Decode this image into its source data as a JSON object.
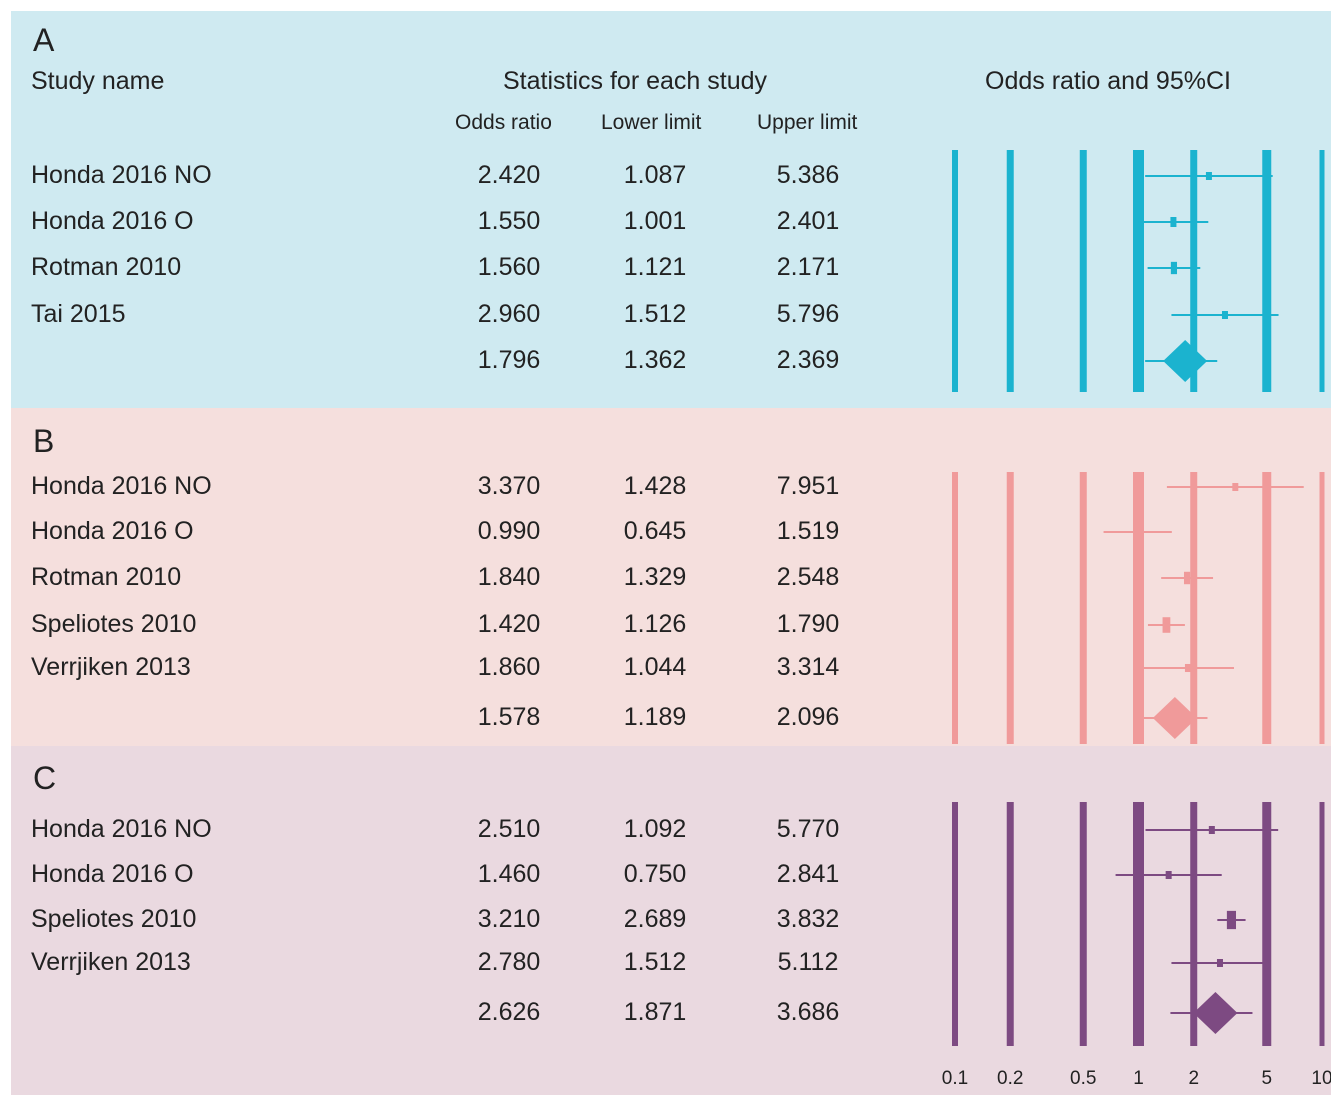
{
  "header": {
    "study_name": "Study name",
    "statistics": "Statistics for each study",
    "odds_ratio": "Odds ratio",
    "lower_limit": "Lower limit",
    "upper_limit": "Upper limit",
    "plot_title": "Odds ratio and 95%CI"
  },
  "chart_data": {
    "type": "forest",
    "x_scale": "log",
    "x_ticks": [
      0.1,
      0.2,
      0.5,
      1,
      2,
      5,
      10
    ],
    "x_tick_labels": [
      "0.1",
      "0.2",
      "0.5",
      "1",
      "2",
      "5",
      "10"
    ],
    "panels": [
      {
        "label": "A",
        "background": "#cfeaf1",
        "color": "#1bb3cf",
        "rows": [
          {
            "study": "Honda 2016 NO",
            "or": "2.420",
            "lower": "1.087",
            "upper": "5.386"
          },
          {
            "study": "Honda 2016 O",
            "or": "1.550",
            "lower": "1.001",
            "upper": "2.401"
          },
          {
            "study": "Rotman 2010",
            "or": "1.560",
            "lower": "1.121",
            "upper": "2.171"
          },
          {
            "study": "Tai 2015",
            "or": "2.960",
            "lower": "1.512",
            "upper": "5.796"
          }
        ],
        "pooled": {
          "or": "1.796",
          "lower": "1.362",
          "upper": "2.369"
        }
      },
      {
        "label": "B",
        "background": "#f5dfdd",
        "color": "#f09a9a",
        "rows": [
          {
            "study": "Honda 2016 NO",
            "or": "3.370",
            "lower": "1.428",
            "upper": "7.951"
          },
          {
            "study": "Honda 2016 O",
            "or": "0.990",
            "lower": "0.645",
            "upper": "1.519"
          },
          {
            "study": "Rotman 2010",
            "or": "1.840",
            "lower": "1.329",
            "upper": "2.548"
          },
          {
            "study": "Speliotes 2010",
            "or": "1.420",
            "lower": "1.126",
            "upper": "1.790"
          },
          {
            "study": "Verrjiken 2013",
            "or": "1.860",
            "lower": "1.044",
            "upper": "3.314"
          }
        ],
        "pooled": {
          "or": "1.578",
          "lower": "1.189",
          "upper": "2.096"
        }
      },
      {
        "label": "C",
        "background": "#ead9e0",
        "color": "#7d4a82",
        "rows": [
          {
            "study": "Honda 2016 NO",
            "or": "2.510",
            "lower": "1.092",
            "upper": "5.770"
          },
          {
            "study": "Honda 2016 O",
            "or": "1.460",
            "lower": "0.750",
            "upper": "2.841"
          },
          {
            "study": "Speliotes 2010",
            "or": "3.210",
            "lower": "2.689",
            "upper": "3.832"
          },
          {
            "study": "Verrjiken 2013",
            "or": "2.780",
            "lower": "1.512",
            "upper": "5.112"
          }
        ],
        "pooled": {
          "or": "2.626",
          "lower": "1.871",
          "upper": "3.686"
        }
      }
    ]
  }
}
